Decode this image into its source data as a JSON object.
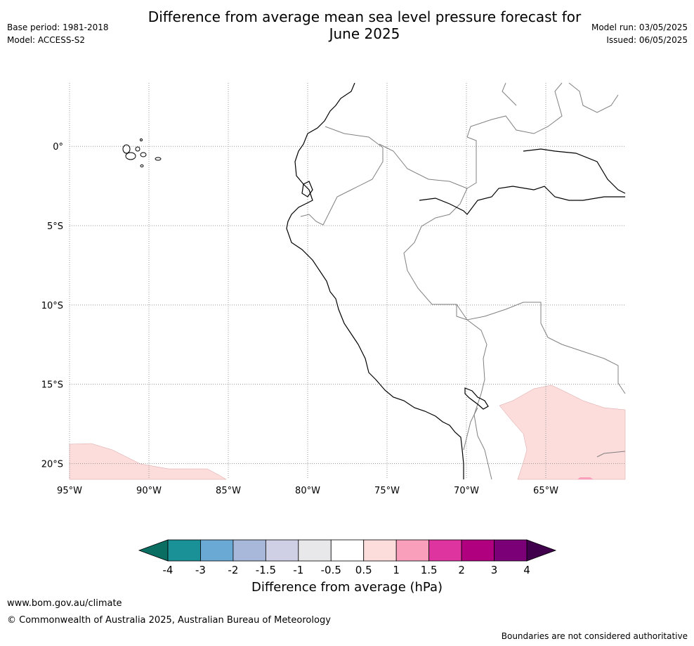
{
  "title": "Difference from average mean sea level pressure forecast for June 2025",
  "title_lines": [
    "Difference from average mean sea level pressure forecast for",
    "June 2025"
  ],
  "meta_left": {
    "base_period": "Base period: 1981-2018",
    "model": "Model: ACCESS-S2"
  },
  "meta_right": {
    "model_run": "Model run: 03/05/2025",
    "issued": "Issued: 06/05/2025"
  },
  "map": {
    "lon_range": [
      -95,
      -60
    ],
    "lat_range": [
      -21,
      4
    ],
    "x_ticks": [
      {
        "lon": -95,
        "label": "95°W"
      },
      {
        "lon": -90,
        "label": "90°W"
      },
      {
        "lon": -85,
        "label": "85°W"
      },
      {
        "lon": -80,
        "label": "80°W"
      },
      {
        "lon": -75,
        "label": "75°W"
      },
      {
        "lon": -70,
        "label": "70°W"
      },
      {
        "lon": -65,
        "label": "65°W"
      }
    ],
    "y_ticks": [
      {
        "lat": 0,
        "label": "0°"
      },
      {
        "lat": -5,
        "label": "5°S"
      },
      {
        "lat": -10,
        "label": "10°S"
      },
      {
        "lat": -15,
        "label": "15°S"
      },
      {
        "lat": -20,
        "label": "20°S"
      }
    ],
    "gridlines": true,
    "anomaly_regions": [
      {
        "level": "0.5 to 1",
        "color": "#fddcdc",
        "location": "south-west corner"
      },
      {
        "level": "0.5 to 1",
        "color": "#fddcdc",
        "location": "south-east (Bolivia)"
      },
      {
        "level": "1 to 1.5",
        "color": "#f99fbc",
        "location": "small patch near 63°W 21°S"
      }
    ]
  },
  "colorbar": {
    "label": "Difference from average (hPa)",
    "ticks": [
      "-4",
      "-3",
      "-2",
      "-1.5",
      "-1",
      "-0.5",
      "0.5",
      "1",
      "1.5",
      "2",
      "3",
      "4"
    ],
    "low_extend_color": "#0b6e62",
    "high_extend_color": "#40004b",
    "colors": [
      "#1a9196",
      "#6aa9d4",
      "#a7b8da",
      "#cfd0e5",
      "#e8e8ea",
      "#ffffff",
      "#fddcdc",
      "#f99fbc",
      "#de34a0",
      "#b00080",
      "#7b0078"
    ]
  },
  "footer": {
    "website": "www.bom.gov.au/climate",
    "copyright": "© Commonwealth of Australia 2025, Australian Bureau of Meteorology",
    "disclaimer": "Boundaries are not considered authoritative"
  }
}
